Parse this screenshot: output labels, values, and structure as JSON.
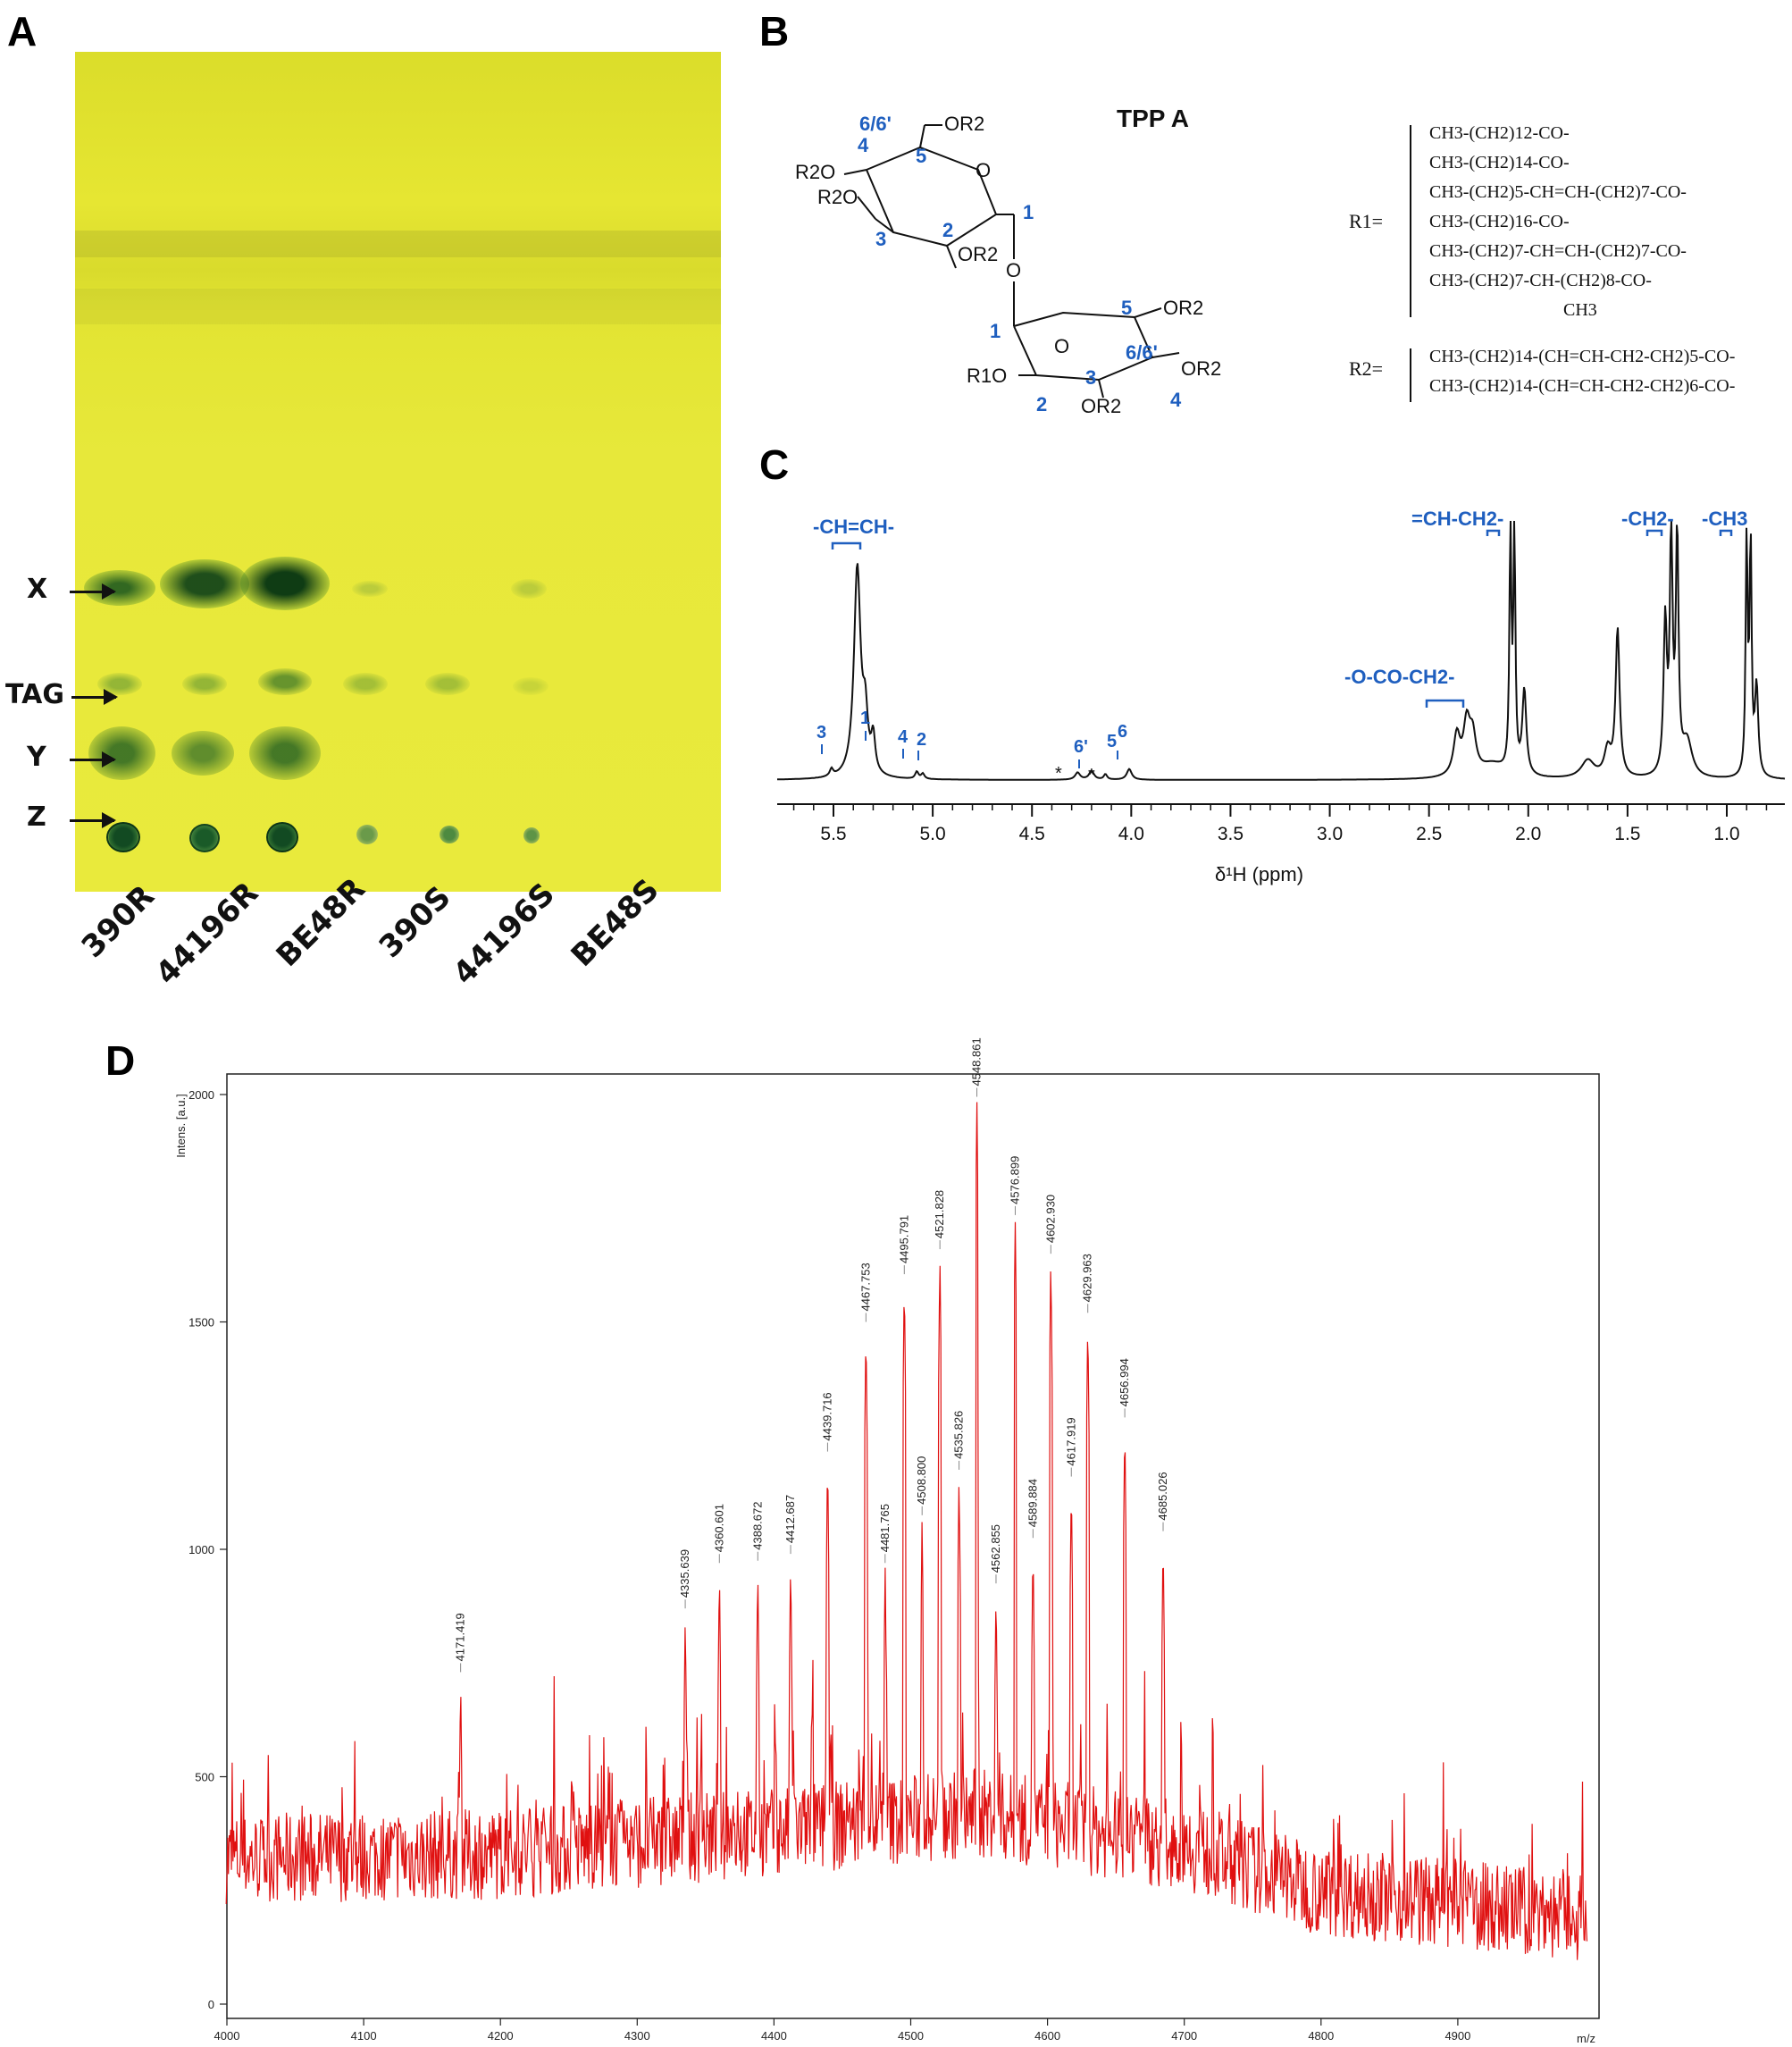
{
  "panels": {
    "A": "A",
    "B": "B",
    "C": "C",
    "D": "D"
  },
  "tlc": {
    "band_labels": [
      "X",
      "TAG",
      "Y",
      "Z"
    ],
    "lanes": [
      "390R",
      "44196R",
      "BE48R",
      "390S",
      "44196S",
      "BE48S"
    ]
  },
  "structure": {
    "title": "TPP A",
    "ring_atoms_top": [
      "6/6'",
      "4",
      "5",
      "1",
      "2",
      "3"
    ],
    "ring_atoms_bottom": [
      "5",
      "1",
      "6/6'",
      "2",
      "3",
      "4"
    ],
    "substituents_top": [
      "OR2",
      "R2O",
      "R2O",
      "O",
      "OR2"
    ],
    "substituents_bottom": [
      "OR2",
      "O",
      "R1O",
      "OR2",
      "OR2"
    ],
    "linker": "O",
    "r1_label": "R1=",
    "r2_label": "R2=",
    "r1_list": [
      "CH3-(CH2)12-CO-",
      "CH3-(CH2)14-CO-",
      "CH3-(CH2)5-CH=CH-(CH2)7-CO-",
      "CH3-(CH2)16-CO-",
      "CH3-(CH2)7-CH=CH-(CH2)7-CO-",
      "CH3-(CH2)7-CH-(CH2)8-CO-",
      "CH3"
    ],
    "r2_list": [
      "CH3-(CH2)14-(CH=CH-CH2-CH2)5-CO-",
      "CH3-(CH2)14-(CH=CH-CH2-CH2)6-CO-"
    ]
  },
  "nmr": {
    "xlabel": "δ¹H (ppm)",
    "ticks": [
      "5.5",
      "5.0",
      "4.5",
      "4.0",
      "3.5",
      "3.0",
      "2.5",
      "2.0",
      "1.5",
      "1.0"
    ],
    "group_labels": [
      "-CH=CH-",
      "=CH-CH2-",
      "-CH2-",
      "-CH3",
      "-O-CO-CH2-"
    ],
    "peak_labels": [
      "3",
      "1",
      "4",
      "2",
      "*",
      "6'",
      "*",
      "5",
      "6"
    ]
  },
  "chart_data": {
    "type": "line",
    "title": "",
    "xlabel": "m/z",
    "ylabel": "Intens. [a.u.]",
    "xlim": [
      4000,
      5000
    ],
    "ylim": [
      0,
      2100
    ],
    "xticks": [
      "4000",
      "4100",
      "4200",
      "4300",
      "4400",
      "4500",
      "4600",
      "4700",
      "4800",
      "4900"
    ],
    "yticks": [
      "0",
      "500",
      "1000",
      "1500",
      "2000"
    ],
    "color": "#e01010",
    "peaks": [
      {
        "mz": 4171.419,
        "label": "4171.419",
        "intensity": 730
      },
      {
        "mz": 4335.639,
        "label": "4335.639",
        "intensity": 870
      },
      {
        "mz": 4360.601,
        "label": "4360.601",
        "intensity": 970
      },
      {
        "mz": 4388.672,
        "label": "4388.672",
        "intensity": 975
      },
      {
        "mz": 4412.687,
        "label": "4412.687",
        "intensity": 990
      },
      {
        "mz": 4439.716,
        "label": "4439.716",
        "intensity": 1215
      },
      {
        "mz": 4467.753,
        "label": "4467.753",
        "intensity": 1500
      },
      {
        "mz": 4481.765,
        "label": "4481.765",
        "intensity": 970
      },
      {
        "mz": 4495.791,
        "label": "4495.791",
        "intensity": 1605
      },
      {
        "mz": 4508.8,
        "label": "4508.800",
        "intensity": 1075
      },
      {
        "mz": 4521.828,
        "label": "4521.828",
        "intensity": 1660
      },
      {
        "mz": 4535.826,
        "label": "4535.826",
        "intensity": 1175
      },
      {
        "mz": 4548.861,
        "label": "4548.861",
        "intensity": 1995
      },
      {
        "mz": 4562.855,
        "label": "4562.855",
        "intensity": 925
      },
      {
        "mz": 4576.899,
        "label": "4576.899",
        "intensity": 1735
      },
      {
        "mz": 4589.884,
        "label": "4589.884",
        "intensity": 1025
      },
      {
        "mz": 4602.93,
        "label": "4602.930",
        "intensity": 1650
      },
      {
        "mz": 4617.919,
        "label": "4617.919",
        "intensity": 1160
      },
      {
        "mz": 4629.963,
        "label": "4629.963",
        "intensity": 1520
      },
      {
        "mz": 4656.994,
        "label": "4656.994",
        "intensity": 1290
      },
      {
        "mz": 4685.026,
        "label": "4685.026",
        "intensity": 1040
      }
    ],
    "baseline": [
      {
        "mz": 4000,
        "intensity": 320
      },
      {
        "mz": 4200,
        "intensity": 330
      },
      {
        "mz": 4400,
        "intensity": 380
      },
      {
        "mz": 4550,
        "intensity": 420
      },
      {
        "mz": 4700,
        "intensity": 350
      },
      {
        "mz": 4800,
        "intensity": 250
      },
      {
        "mz": 5000,
        "intensity": 190
      }
    ]
  }
}
